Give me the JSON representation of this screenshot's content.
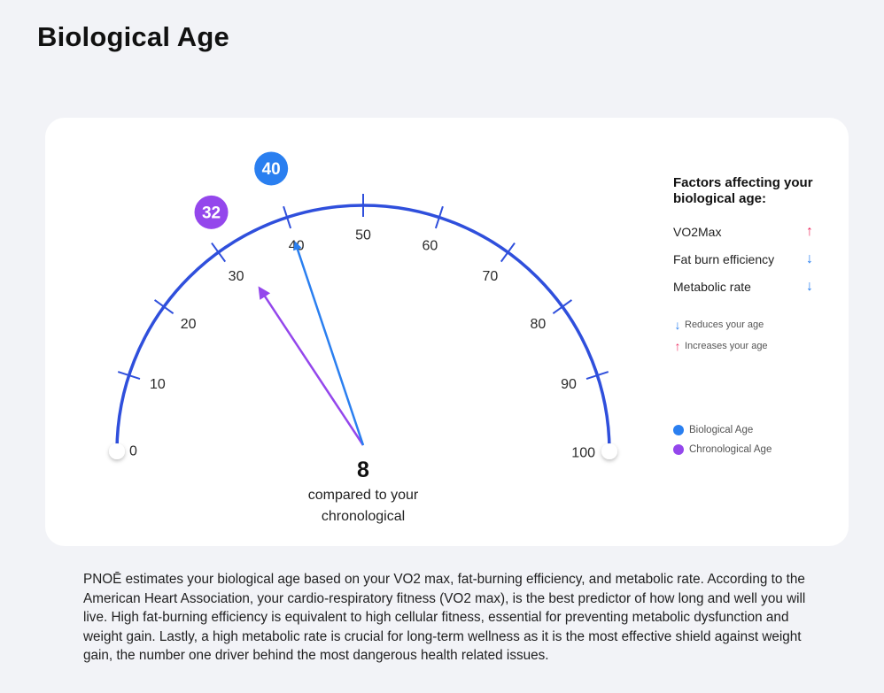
{
  "page": {
    "title": "Biological Age"
  },
  "gauge": {
    "min": 0,
    "max": 100,
    "ticks": [
      "0",
      "10",
      "20",
      "30",
      "40",
      "50",
      "60",
      "70",
      "80",
      "90",
      "100"
    ],
    "biological_age": 40,
    "chronological_age": 32,
    "biological_label": "40",
    "chronological_label": "32",
    "difference": "8",
    "caption_line1": "compared to your",
    "caption_line2": "chronological",
    "colors": {
      "arc": "#2f4fdc",
      "biological": "#2a7ff0",
      "chronological": "#9447ec"
    }
  },
  "factors": {
    "title": "Factors affecting your biological age:",
    "items": [
      {
        "label": "VO2Max",
        "direction": "up",
        "arrow": "↑",
        "color": "#ee2f63"
      },
      {
        "label": "Fat burn efficiency",
        "direction": "down",
        "arrow": "↓",
        "color": "#2a7ff0"
      },
      {
        "label": "Metabolic rate",
        "direction": "down",
        "arrow": "↓",
        "color": "#2a7ff0"
      }
    ],
    "arrow_legend": [
      {
        "arrow": "↓",
        "label": "Reduces your age",
        "color": "#2a7ff0"
      },
      {
        "arrow": "↑",
        "label": "Increases your age",
        "color": "#ee2f63"
      }
    ],
    "series_legend": [
      {
        "label": "Biological Age",
        "color": "#2a7ff0"
      },
      {
        "label": "Chronological Age",
        "color": "#9447ec"
      }
    ]
  },
  "description": "PNOĒ estimates your biological age based on your VO2 max, fat-burning efficiency, and metabolic rate. According to the American Heart Association, your cardio-respiratory fitness (VO2 max), is the best predictor of how long and well you will live. High fat-burning efficiency is equivalent to high cellular fitness, essential for preventing metabolic dysfunction and weight gain. Lastly, a high metabolic rate is crucial for long-term wellness as it is the most effective shield against weight gain, the number one driver behind the most dangerous health related issues."
}
